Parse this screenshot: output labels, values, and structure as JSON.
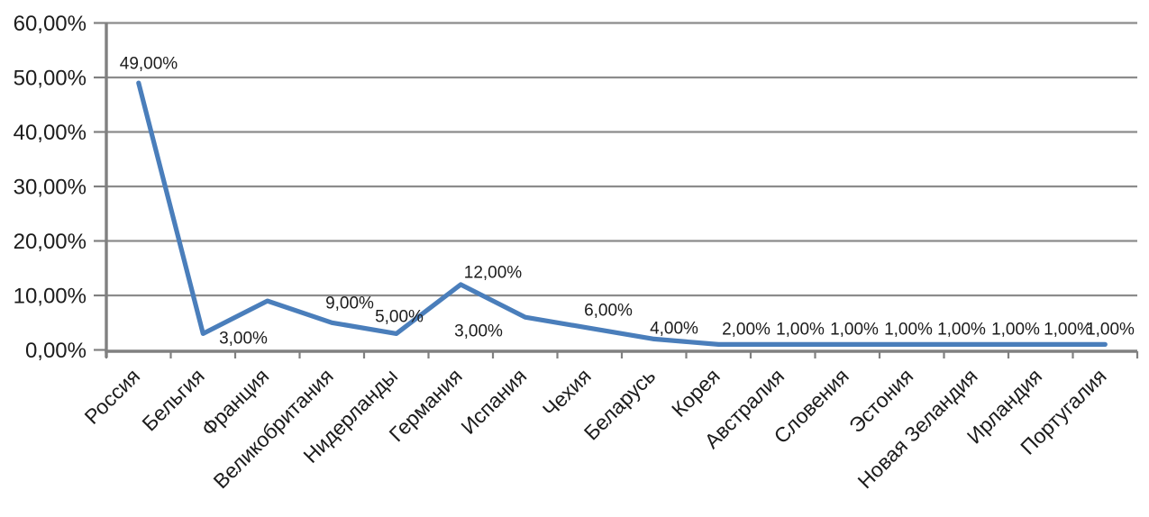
{
  "chart_data": {
    "type": "line",
    "categories": [
      "Россия",
      "Бельгия",
      "Франция",
      "Великобритания",
      "Нидерланды",
      "Германия",
      "Испания",
      "Чехия",
      "Беларусь",
      "Корея",
      "Австралия",
      "Словения",
      "Эстония",
      "Новая Зеландия",
      "Ирландия",
      "Португалия"
    ],
    "values": [
      49,
      3,
      9,
      5,
      3,
      12,
      6,
      4,
      2,
      1,
      1,
      1,
      1,
      1,
      1,
      1
    ],
    "value_labels": [
      "49,00%",
      "3,00%",
      "9,00%",
      "5,00%",
      "3,00%",
      "12,00%",
      "6,00%",
      "4,00%",
      "2,00%",
      "1,00%",
      "1,00%",
      "1,00%",
      "1,00%",
      "1,00%",
      "1,00%",
      "1,00%"
    ],
    "title": "",
    "xlabel": "",
    "ylabel": "",
    "ylim": [
      0,
      60
    ],
    "y_tick_step": 10,
    "y_tick_labels": [
      "0,00%",
      "10,00%",
      "20,00%",
      "30,00%",
      "40,00%",
      "50,00%",
      "60,00%"
    ],
    "grid": "horizontal",
    "legend": false,
    "colors": {
      "series_line": "#4A7EBB",
      "gridline": "#8C8C8C",
      "axis": "#808080",
      "text": "#1c1c1c"
    }
  }
}
